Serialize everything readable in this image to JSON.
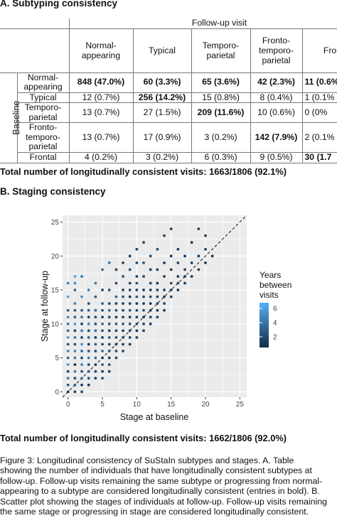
{
  "section_a": {
    "title": "A. Subtyping consistency",
    "followup_header": "Follow-up visit",
    "baseline_label": "Baseline",
    "columns": [
      [
        "Normal-",
        "appearing"
      ],
      [
        "Typical"
      ],
      [
        "Temporo-",
        "parietal"
      ],
      [
        "Fronto-",
        "temporo-",
        "parietal"
      ],
      [
        "Fronta"
      ]
    ],
    "rows": [
      {
        "label": [
          "Normal-",
          "appearing"
        ],
        "cells": [
          "848 (47.0%)",
          "60 (3.3%)",
          "65 (3.6%)",
          "42 (2.3%)",
          "11 (0.6%"
        ],
        "bold": [
          true,
          true,
          true,
          true,
          true
        ]
      },
      {
        "label": [
          "Typical"
        ],
        "cells": [
          "12 (0.7%)",
          "256 (14.2%)",
          "15 (0.8%)",
          "8 (0.4%)",
          "1 (0.1%"
        ],
        "bold": [
          false,
          true,
          false,
          false,
          false
        ]
      },
      {
        "label": [
          "Temporo-",
          "parietal"
        ],
        "cells": [
          "13 (0.7%)",
          "27 (1.5%)",
          "209 (11.6%)",
          "10 (0.6%)",
          "0 (0%"
        ],
        "bold": [
          false,
          false,
          true,
          false,
          false
        ]
      },
      {
        "label": [
          "Fronto-",
          "temporo-",
          "parietal"
        ],
        "cells": [
          "13 (0.7%)",
          "17 (0.9%)",
          "3 (0.2%)",
          "142 (7.9%)",
          "2 (0.1%"
        ],
        "bold": [
          false,
          false,
          false,
          true,
          false
        ]
      },
      {
        "label": [
          "Frontal"
        ],
        "cells": [
          "4 (0.2%)",
          "3 (0.2%)",
          "6 (0.3%)",
          "9 (0.5%)",
          "30 (1.7"
        ],
        "bold": [
          false,
          false,
          false,
          false,
          true
        ]
      }
    ],
    "total": "Total number of longitudinally consistent visits: 1663/1806 (92.1%)"
  },
  "section_b": {
    "title": "B. Staging consistency",
    "total": "Total number of longitudinally consistent visits: 1662/1806 (92.0%)"
  },
  "chart_data": {
    "type": "scatter",
    "xlabel": "Stage at baseline",
    "ylabel": "Stage at follow-up",
    "xlim": [
      0,
      26
    ],
    "ylim": [
      0,
      26
    ],
    "xticks": [
      "0",
      "5",
      "10",
      "15",
      "20",
      "25"
    ],
    "yticks": [
      "0",
      "5",
      "10",
      "15",
      "20",
      "25"
    ],
    "grid": true,
    "reference_line": "y = x (dashed)",
    "legend": {
      "title": [
        "Years",
        "between",
        "visits"
      ],
      "ticks": [
        "2",
        "4",
        "6"
      ],
      "range": [
        0.5,
        6.8
      ],
      "position": "right"
    },
    "colors": {
      "panel_bg": "#ebebeb",
      "grid": "#ffffff",
      "low": "#132b43",
      "high": "#56b1f7"
    },
    "points": [
      [
        0,
        0,
        1.2
      ],
      [
        0,
        1,
        2.5
      ],
      [
        0,
        2,
        4.1
      ],
      [
        0,
        3,
        1.8
      ],
      [
        0,
        4,
        5.5
      ],
      [
        0,
        5,
        3.0
      ],
      [
        0,
        6,
        4.8
      ],
      [
        0,
        7,
        2.2
      ],
      [
        0,
        8,
        6.1
      ],
      [
        0,
        9,
        3.5
      ],
      [
        0,
        10,
        4.0
      ],
      [
        0,
        11,
        5.2
      ],
      [
        0,
        12,
        2.8
      ],
      [
        0,
        14,
        6.3
      ],
      [
        0,
        16,
        4.5
      ],
      [
        1,
        0,
        1.5
      ],
      [
        1,
        1,
        3.2
      ],
      [
        1,
        2,
        2.1
      ],
      [
        1,
        3,
        4.6
      ],
      [
        1,
        4,
        1.0
      ],
      [
        1,
        5,
        3.8
      ],
      [
        1,
        6,
        5.0
      ],
      [
        1,
        7,
        2.4
      ],
      [
        1,
        8,
        4.2
      ],
      [
        1,
        9,
        1.7
      ],
      [
        1,
        10,
        5.8
      ],
      [
        1,
        11,
        3.1
      ],
      [
        1,
        12,
        2.6
      ],
      [
        1,
        13,
        4.4
      ],
      [
        1,
        15,
        3.7
      ],
      [
        1,
        17,
        6.2
      ],
      [
        1,
        16,
        5.1
      ],
      [
        2,
        0,
        2.0
      ],
      [
        2,
        1,
        1.3
      ],
      [
        2,
        2,
        3.6
      ],
      [
        2,
        3,
        2.7
      ],
      [
        2,
        4,
        4.9
      ],
      [
        2,
        5,
        1.9
      ],
      [
        2,
        6,
        3.3
      ],
      [
        2,
        7,
        5.6
      ],
      [
        2,
        8,
        2.3
      ],
      [
        2,
        9,
        4.1
      ],
      [
        2,
        10,
        1.6
      ],
      [
        2,
        11,
        3.9
      ],
      [
        2,
        12,
        2.9
      ],
      [
        2,
        14,
        5.3
      ],
      [
        2,
        17,
        4.0
      ],
      [
        3,
        1,
        1.1
      ],
      [
        3,
        2,
        2.4
      ],
      [
        3,
        3,
        3.0
      ],
      [
        3,
        4,
        1.8
      ],
      [
        3,
        5,
        4.3
      ],
      [
        3,
        6,
        2.6
      ],
      [
        3,
        7,
        1.4
      ],
      [
        3,
        8,
        3.5
      ],
      [
        3,
        9,
        2.1
      ],
      [
        3,
        10,
        4.7
      ],
      [
        3,
        11,
        1.7
      ],
      [
        3,
        12,
        3.2
      ],
      [
        3,
        13,
        2.5
      ],
      [
        3,
        15,
        4.6
      ],
      [
        4,
        2,
        1.2
      ],
      [
        4,
        3,
        2.1
      ],
      [
        4,
        4,
        1.6
      ],
      [
        4,
        5,
        3.4
      ],
      [
        4,
        6,
        2.0
      ],
      [
        4,
        7,
        2.8
      ],
      [
        4,
        8,
        1.5
      ],
      [
        4,
        9,
        3.6
      ],
      [
        4,
        10,
        2.3
      ],
      [
        4,
        11,
        1.9
      ],
      [
        4,
        12,
        3.1
      ],
      [
        4,
        14,
        2.7
      ],
      [
        4,
        16,
        4.2
      ],
      [
        5,
        2,
        2.2
      ],
      [
        5,
        3,
        1.4
      ],
      [
        5,
        4,
        2.9
      ],
      [
        5,
        5,
        1.3
      ],
      [
        5,
        6,
        3.7
      ],
      [
        5,
        7,
        2.1
      ],
      [
        5,
        8,
        1.8
      ],
      [
        5,
        9,
        2.5
      ],
      [
        5,
        10,
        3.3
      ],
      [
        5,
        11,
        1.6
      ],
      [
        5,
        12,
        2.4
      ],
      [
        5,
        13,
        3.0
      ],
      [
        5,
        15,
        2.0
      ],
      [
        5,
        18,
        3.6
      ],
      [
        6,
        3,
        1.7
      ],
      [
        6,
        4,
        2.3
      ],
      [
        6,
        5,
        1.2
      ],
      [
        6,
        6,
        2.8
      ],
      [
        6,
        7,
        1.9
      ],
      [
        6,
        8,
        3.2
      ],
      [
        6,
        9,
        1.5
      ],
      [
        6,
        10,
        2.6
      ],
      [
        6,
        11,
        2.0
      ],
      [
        6,
        12,
        3.5
      ],
      [
        6,
        13,
        1.8
      ],
      [
        6,
        15,
        2.4
      ],
      [
        6,
        19,
        3.9
      ],
      [
        7,
        5,
        1.6
      ],
      [
        7,
        6,
        2.2
      ],
      [
        7,
        7,
        1.4
      ],
      [
        7,
        8,
        2.7
      ],
      [
        7,
        9,
        1.9
      ],
      [
        7,
        10,
        3.0
      ],
      [
        7,
        11,
        1.3
      ],
      [
        7,
        12,
        2.5
      ],
      [
        7,
        13,
        1.7
      ],
      [
        7,
        14,
        3.3
      ],
      [
        7,
        16,
        2.1
      ],
      [
        7,
        18,
        1.8
      ],
      [
        8,
        6,
        1.9
      ],
      [
        8,
        7,
        1.5
      ],
      [
        8,
        8,
        2.4
      ],
      [
        8,
        9,
        1.2
      ],
      [
        8,
        10,
        2.9
      ],
      [
        8,
        11,
        1.6
      ],
      [
        8,
        12,
        2.2
      ],
      [
        8,
        13,
        1.4
      ],
      [
        8,
        14,
        2.6
      ],
      [
        8,
        15,
        1.8
      ],
      [
        8,
        17,
        2.3
      ],
      [
        8,
        19,
        1.5
      ],
      [
        9,
        7,
        1.3
      ],
      [
        9,
        8,
        2.0
      ],
      [
        9,
        9,
        1.7
      ],
      [
        9,
        10,
        2.5
      ],
      [
        9,
        11,
        1.4
      ],
      [
        9,
        12,
        2.8
      ],
      [
        9,
        13,
        1.9
      ],
      [
        9,
        14,
        1.2
      ],
      [
        9,
        15,
        2.3
      ],
      [
        9,
        16,
        1.6
      ],
      [
        9,
        18,
        2.1
      ],
      [
        9,
        20,
        1.4
      ],
      [
        10,
        8,
        1.8
      ],
      [
        10,
        9,
        1.3
      ],
      [
        10,
        10,
        2.2
      ],
      [
        10,
        11,
        1.5
      ],
      [
        10,
        12,
        2.0
      ],
      [
        10,
        13,
        1.2
      ],
      [
        10,
        14,
        2.6
      ],
      [
        10,
        15,
        1.7
      ],
      [
        10,
        16,
        2.4
      ],
      [
        10,
        17,
        1.4
      ],
      [
        10,
        19,
        1.9
      ],
      [
        10,
        21,
        1.6
      ],
      [
        11,
        9,
        1.5
      ],
      [
        11,
        10,
        1.9
      ],
      [
        11,
        11,
        1.2
      ],
      [
        11,
        12,
        2.3
      ],
      [
        11,
        13,
        1.6
      ],
      [
        11,
        14,
        2.1
      ],
      [
        11,
        15,
        1.3
      ],
      [
        11,
        17,
        1.8
      ],
      [
        11,
        19,
        2.5
      ],
      [
        11,
        22,
        1.9
      ],
      [
        12,
        10,
        1.4
      ],
      [
        12,
        11,
        2.0
      ],
      [
        12,
        12,
        1.6
      ],
      [
        12,
        13,
        1.2
      ],
      [
        12,
        14,
        2.2
      ],
      [
        12,
        15,
        1.5
      ],
      [
        12,
        16,
        1.8
      ],
      [
        12,
        18,
        1.3
      ],
      [
        12,
        20,
        2.3
      ],
      [
        13,
        11,
        1.7
      ],
      [
        13,
        12,
        1.3
      ],
      [
        13,
        13,
        2.1
      ],
      [
        13,
        14,
        1.5
      ],
      [
        13,
        15,
        1.9
      ],
      [
        13,
        16,
        1.2
      ],
      [
        13,
        18,
        1.6
      ],
      [
        13,
        21,
        2.2
      ],
      [
        14,
        12,
        1.2
      ],
      [
        14,
        13,
        1.8
      ],
      [
        14,
        14,
        1.4
      ],
      [
        14,
        15,
        2.0
      ],
      [
        14,
        17,
        1.5
      ],
      [
        14,
        19,
        1.3
      ],
      [
        14,
        23,
        1.7
      ],
      [
        15,
        14,
        1.6
      ],
      [
        15,
        15,
        1.3
      ],
      [
        15,
        16,
        1.9
      ],
      [
        15,
        18,
        1.4
      ],
      [
        15,
        20,
        1.2
      ],
      [
        15,
        24,
        1.5
      ],
      [
        16,
        15,
        1.5
      ],
      [
        16,
        16,
        1.8
      ],
      [
        16,
        17,
        1.3
      ],
      [
        16,
        19,
        1.6
      ],
      [
        16,
        21,
        1.4
      ],
      [
        17,
        16,
        1.4
      ],
      [
        17,
        17,
        1.2
      ],
      [
        17,
        18,
        1.7
      ],
      [
        17,
        20,
        1.3
      ],
      [
        18,
        17,
        1.3
      ],
      [
        18,
        19,
        1.5
      ],
      [
        18,
        22,
        1.2
      ],
      [
        19,
        18,
        1.4
      ],
      [
        19,
        20,
        1.3
      ],
      [
        19,
        24,
        1.6
      ],
      [
        20,
        19,
        1.2
      ],
      [
        20,
        21,
        1.5
      ],
      [
        20,
        23,
        1.3
      ],
      [
        21,
        20,
        1.4
      ]
    ]
  },
  "caption": [
    "Figure 3: Longitudinal consistency of SuStaIn subtypes and stages. A. Table",
    "showing the number of individuals that have longitudinally consistent subtypes at",
    "follow-up. Follow-up visits remaining the same subtype or progressing from normal-",
    "appearing to a subtype are considered longitudinally consistent (entries in bold). B.",
    "Scatter plot showing the stages of individuals at follow-up. Follow-up visits remaining",
    "the same stage or progressing in stage are considered longitudinally consistent."
  ]
}
